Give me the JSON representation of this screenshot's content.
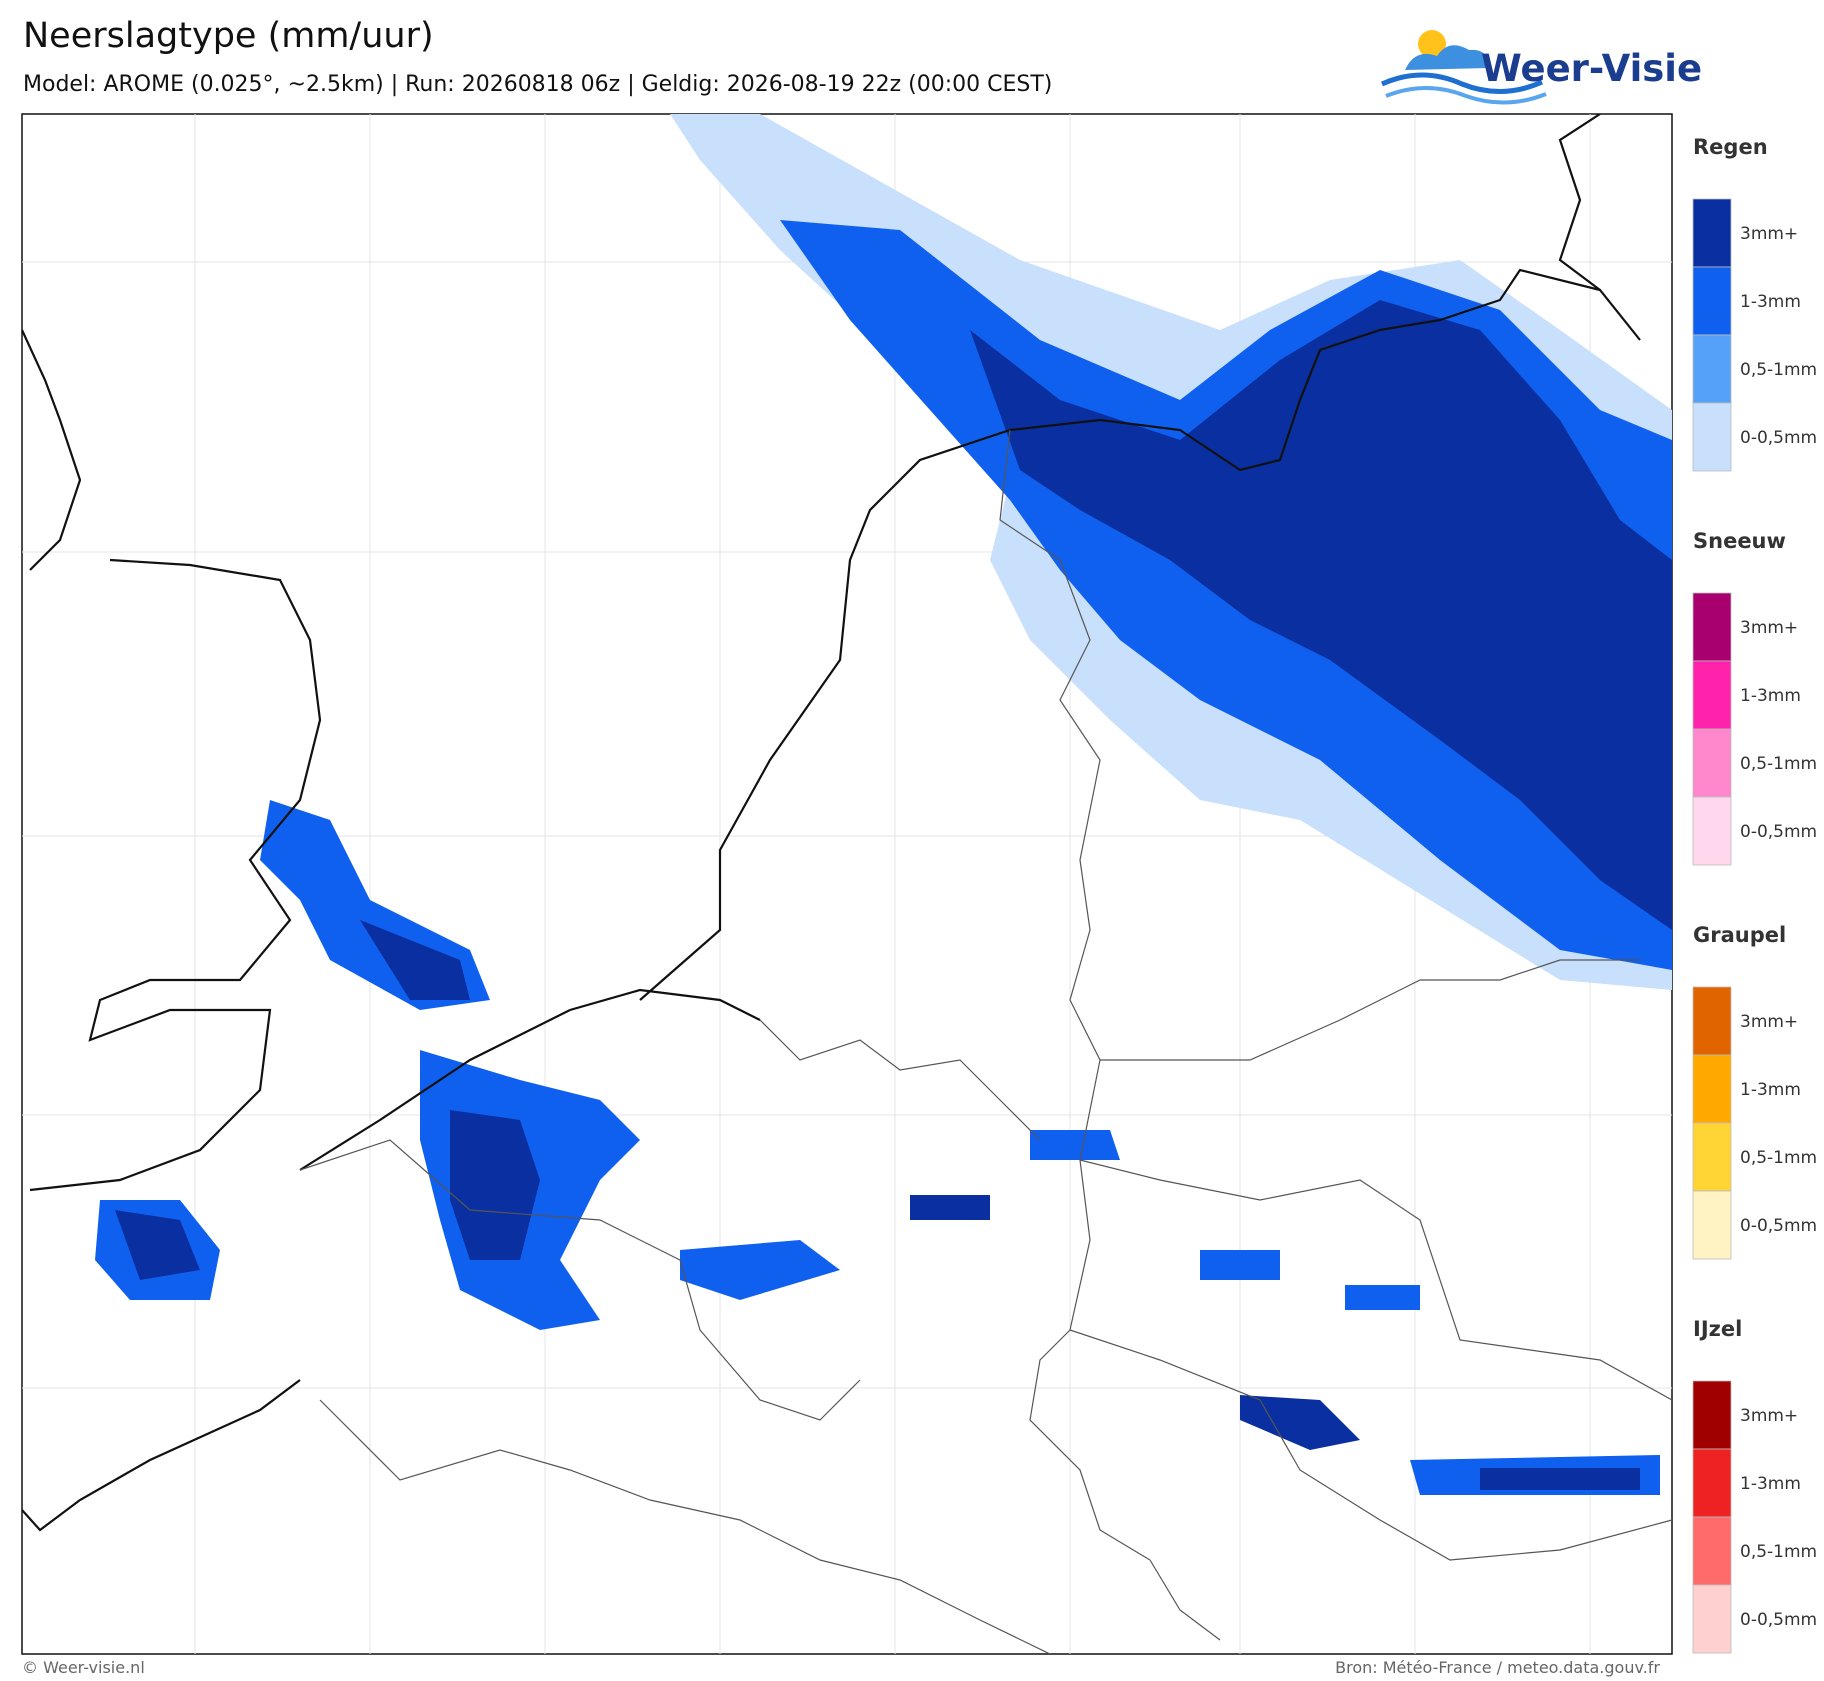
{
  "header": {
    "title": "Neerslagtype (mm/uur)",
    "subtitle": "Model: AROME (0.025°, ~2.5km)  |  Run: 20260818 06z  |  Geldig: 2026-08-19 22z (00:00 CEST)"
  },
  "logo": {
    "text": "Weer-Visie"
  },
  "legend": {
    "groups": [
      {
        "title": "Regen",
        "items": [
          {
            "label": "3mm+",
            "color": "#0a2fa0"
          },
          {
            "label": "1-3mm",
            "color": "#1060f0"
          },
          {
            "label": "0,5-1mm",
            "color": "#55a0f8"
          },
          {
            "label": "0-0,5mm",
            "color": "#c8e0fc"
          }
        ]
      },
      {
        "title": "Sneeuw",
        "items": [
          {
            "label": "3mm+",
            "color": "#a8006e"
          },
          {
            "label": "1-3mm",
            "color": "#ff22aa"
          },
          {
            "label": "0,5-1mm",
            "color": "#ff88cc"
          },
          {
            "label": "0-0,5mm",
            "color": "#ffd8ee"
          }
        ]
      },
      {
        "title": "Graupel",
        "items": [
          {
            "label": "3mm+",
            "color": "#e06400"
          },
          {
            "label": "1-3mm",
            "color": "#ffa800"
          },
          {
            "label": "0,5-1mm",
            "color": "#ffd535"
          },
          {
            "label": "0-0,5mm",
            "color": "#fff3c4"
          }
        ]
      },
      {
        "title": "IJzel",
        "items": [
          {
            "label": "3mm+",
            "color": "#a00000"
          },
          {
            "label": "1-3mm",
            "color": "#ee2222"
          },
          {
            "label": "0,5-1mm",
            "color": "#ff6a6a"
          },
          {
            "label": "0-0,5mm",
            "color": "#ffd0d0"
          }
        ]
      }
    ]
  },
  "footer": {
    "left": "© Weer-visie.nl",
    "right": "Bron: Météo-France / meteo.data.gouv.fr"
  }
}
